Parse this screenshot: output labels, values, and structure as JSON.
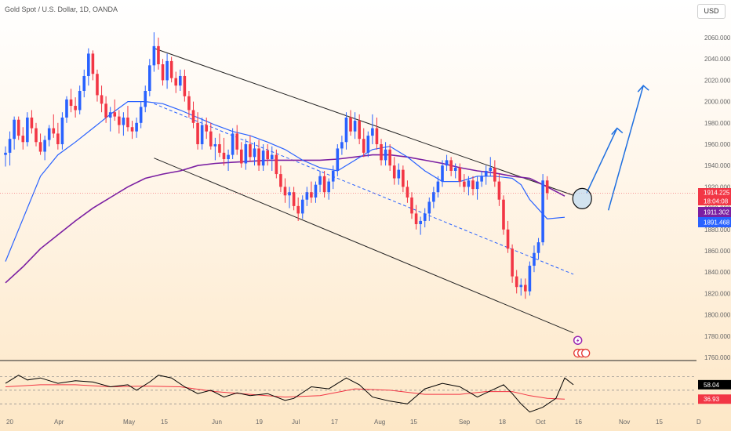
{
  "header": {
    "title": "Gold Spot / U.S. Dollar, 1D, OANDA",
    "currency": "USD"
  },
  "price_axis": {
    "ticks": [
      "2060.000",
      "2040.000",
      "2020.000",
      "2000.000",
      "1980.000",
      "1960.000",
      "1940.000",
      "1920.000",
      "1900.000",
      "1880.000",
      "1860.000",
      "1840.000",
      "1820.000",
      "1800.000",
      "1780.000",
      "1760.000"
    ]
  },
  "price_labels": {
    "last": "1914.225",
    "countdown": "18:04:08",
    "ma_long": "1911.302",
    "ma_short": "1891.468"
  },
  "time_axis": {
    "ticks": [
      "20",
      "Apr",
      "May",
      "15",
      "Jun",
      "19",
      "Jul",
      "17",
      "Aug",
      "15",
      "Sep",
      "18",
      "Oct",
      "16",
      "Nov",
      "15",
      "D"
    ]
  },
  "rsi": {
    "value": "58.04",
    "signal": "36.93"
  },
  "colors": {
    "up": "#2962ff",
    "down": "#f23645",
    "ma_short": "#2962ff",
    "ma_long": "#7b1fa2",
    "rsi": "#000000",
    "rsi_signal": "#f23645",
    "arrow": "#1e6fe0"
  },
  "chart_data": {
    "type": "candlestick",
    "title": "Gold Spot / U.S. Dollar, 1D, OANDA",
    "ylim": [
      1760,
      2060
    ],
    "last_price": 1914.225,
    "ma_values": [
      1911.302,
      1891.468
    ],
    "candles": [
      [
        1950,
        1958,
        1939,
        1952
      ],
      [
        1952,
        1972,
        1940,
        1965
      ],
      [
        1965,
        1986,
        1955,
        1983
      ],
      [
        1983,
        1986,
        1964,
        1968
      ],
      [
        1968,
        1976,
        1955,
        1962
      ],
      [
        1962,
        1990,
        1958,
        1985
      ],
      [
        1985,
        1992,
        1970,
        1975
      ],
      [
        1975,
        1980,
        1958,
        1962
      ],
      [
        1962,
        1970,
        1950,
        1953
      ],
      [
        1953,
        1968,
        1945,
        1964
      ],
      [
        1964,
        1978,
        1958,
        1975
      ],
      [
        1975,
        1988,
        1966,
        1970
      ],
      [
        1970,
        1980,
        1955,
        1960
      ],
      [
        1960,
        1990,
        1955,
        1985
      ],
      [
        1985,
        2005,
        1980,
        2002
      ],
      [
        2002,
        2012,
        1990,
        1996
      ],
      [
        1996,
        2004,
        1985,
        1992
      ],
      [
        1992,
        2015,
        1988,
        2010
      ],
      [
        2010,
        2030,
        2004,
        2024
      ],
      [
        2024,
        2050,
        2015,
        2045
      ],
      [
        2045,
        2048,
        2020,
        2026
      ],
      [
        2026,
        2030,
        2000,
        2006
      ],
      [
        2006,
        2015,
        1990,
        1998
      ],
      [
        1998,
        2005,
        1980,
        1985
      ],
      [
        1985,
        1995,
        1972,
        1990
      ],
      [
        1990,
        2002,
        1982,
        1986
      ],
      [
        1986,
        1992,
        1970,
        1978
      ],
      [
        1978,
        1990,
        1968,
        1985
      ],
      [
        1985,
        1996,
        1972,
        1976
      ],
      [
        1976,
        1982,
        1965,
        1972
      ],
      [
        1972,
        1985,
        1966,
        1980
      ],
      [
        1980,
        2000,
        1975,
        1995
      ],
      [
        1995,
        2015,
        1990,
        2010
      ],
      [
        2010,
        2040,
        2005,
        2034
      ],
      [
        2034,
        2065,
        2028,
        2052
      ],
      [
        2052,
        2060,
        2030,
        2035
      ],
      [
        2035,
        2040,
        2015,
        2020
      ],
      [
        2020,
        2045,
        2012,
        2038
      ],
      [
        2038,
        2042,
        2018,
        2022
      ],
      [
        2022,
        2028,
        2008,
        2015
      ],
      [
        2015,
        2030,
        2010,
        2024
      ],
      [
        2024,
        2030,
        2000,
        2005
      ],
      [
        2005,
        2010,
        1985,
        1992
      ],
      [
        1992,
        2000,
        1975,
        1980
      ],
      [
        1980,
        1990,
        1955,
        1960
      ],
      [
        1960,
        1985,
        1955,
        1978
      ],
      [
        1978,
        1985,
        1965,
        1972
      ],
      [
        1972,
        1980,
        1955,
        1958
      ],
      [
        1958,
        1966,
        1945,
        1960
      ],
      [
        1960,
        1970,
        1948,
        1952
      ],
      [
        1952,
        1966,
        1940,
        1946
      ],
      [
        1946,
        1955,
        1935,
        1950
      ],
      [
        1950,
        1975,
        1946,
        1970
      ],
      [
        1970,
        1978,
        1950,
        1955
      ],
      [
        1955,
        1962,
        1938,
        1942
      ],
      [
        1942,
        1965,
        1936,
        1960
      ],
      [
        1960,
        1968,
        1944,
        1948
      ],
      [
        1948,
        1962,
        1940,
        1956
      ],
      [
        1956,
        1964,
        1935,
        1940
      ],
      [
        1940,
        1960,
        1935,
        1954
      ],
      [
        1954,
        1960,
        1940,
        1946
      ],
      [
        1946,
        1958,
        1935,
        1950
      ],
      [
        1950,
        1955,
        1928,
        1932
      ],
      [
        1932,
        1940,
        1915,
        1920
      ],
      [
        1920,
        1928,
        1905,
        1912
      ],
      [
        1912,
        1920,
        1900,
        1915
      ],
      [
        1915,
        1920,
        1898,
        1902
      ],
      [
        1902,
        1910,
        1888,
        1895
      ],
      [
        1895,
        1912,
        1890,
        1908
      ],
      [
        1908,
        1920,
        1902,
        1915
      ],
      [
        1915,
        1925,
        1905,
        1910
      ],
      [
        1910,
        1925,
        1905,
        1922
      ],
      [
        1922,
        1935,
        1915,
        1930
      ],
      [
        1930,
        1935,
        1910,
        1915
      ],
      [
        1915,
        1928,
        1908,
        1925
      ],
      [
        1925,
        1940,
        1918,
        1935
      ],
      [
        1935,
        1960,
        1930,
        1956
      ],
      [
        1956,
        1968,
        1950,
        1962
      ],
      [
        1962,
        1990,
        1955,
        1985
      ],
      [
        1985,
        1992,
        1968,
        1972
      ],
      [
        1972,
        1990,
        1965,
        1982
      ],
      [
        1982,
        1988,
        1960,
        1965
      ],
      [
        1965,
        1975,
        1948,
        1952
      ],
      [
        1952,
        1972,
        1948,
        1968
      ],
      [
        1968,
        1988,
        1960,
        1975
      ],
      [
        1975,
        1985,
        1955,
        1960
      ],
      [
        1960,
        1965,
        1940,
        1945
      ],
      [
        1945,
        1962,
        1940,
        1955
      ],
      [
        1955,
        1960,
        1935,
        1940
      ],
      [
        1940,
        1948,
        1922,
        1928
      ],
      [
        1928,
        1942,
        1922,
        1936
      ],
      [
        1936,
        1940,
        1915,
        1920
      ],
      [
        1920,
        1926,
        1905,
        1910
      ],
      [
        1910,
        1915,
        1890,
        1895
      ],
      [
        1895,
        1903,
        1880,
        1885
      ],
      [
        1885,
        1892,
        1875,
        1888
      ],
      [
        1888,
        1900,
        1882,
        1895
      ],
      [
        1895,
        1910,
        1888,
        1906
      ],
      [
        1906,
        1920,
        1900,
        1915
      ],
      [
        1915,
        1930,
        1910,
        1925
      ],
      [
        1925,
        1945,
        1920,
        1940
      ],
      [
        1940,
        1950,
        1935,
        1945
      ],
      [
        1945,
        1948,
        1930,
        1935
      ],
      [
        1935,
        1942,
        1928,
        1938
      ],
      [
        1938,
        1942,
        1920,
        1925
      ],
      [
        1925,
        1932,
        1915,
        1920
      ],
      [
        1920,
        1930,
        1912,
        1926
      ],
      [
        1926,
        1930,
        1912,
        1918
      ],
      [
        1918,
        1930,
        1908,
        1925
      ],
      [
        1925,
        1935,
        1920,
        1930
      ],
      [
        1930,
        1940,
        1922,
        1935
      ],
      [
        1935,
        1948,
        1930,
        1938
      ],
      [
        1938,
        1945,
        1920,
        1925
      ],
      [
        1925,
        1932,
        1902,
        1908
      ],
      [
        1908,
        1912,
        1875,
        1880
      ],
      [
        1880,
        1888,
        1858,
        1862
      ],
      [
        1862,
        1866,
        1830,
        1836
      ],
      [
        1836,
        1842,
        1820,
        1826
      ],
      [
        1826,
        1834,
        1818,
        1828
      ],
      [
        1828,
        1834,
        1815,
        1822
      ],
      [
        1822,
        1850,
        1818,
        1846
      ],
      [
        1846,
        1865,
        1840,
        1858
      ],
      [
        1858,
        1872,
        1852,
        1868
      ],
      [
        1868,
        1932,
        1865,
        1926
      ],
      [
        1926,
        1930,
        1908,
        1914.225
      ]
    ],
    "channel_upper": [
      [
        34,
        2050
      ],
      [
        130,
        1912
      ]
    ],
    "channel_lower": [
      [
        34,
        1947
      ],
      [
        130,
        1783
      ]
    ],
    "channel_mid": [
      [
        34,
        1998
      ],
      [
        130,
        1838
      ]
    ],
    "ma_short": [
      [
        0,
        1850
      ],
      [
        4,
        1890
      ],
      [
        8,
        1930
      ],
      [
        12,
        1950
      ],
      [
        16,
        1962
      ],
      [
        20,
        1975
      ],
      [
        24,
        1988
      ],
      [
        28,
        2000
      ],
      [
        32,
        2000
      ],
      [
        36,
        1998
      ],
      [
        40,
        1992
      ],
      [
        44,
        1985
      ],
      [
        48,
        1978
      ],
      [
        52,
        1972
      ],
      [
        56,
        1968
      ],
      [
        60,
        1962
      ],
      [
        64,
        1955
      ],
      [
        68,
        1945
      ],
      [
        72,
        1938
      ],
      [
        76,
        1935
      ],
      [
        80,
        1945
      ],
      [
        84,
        1955
      ],
      [
        88,
        1958
      ],
      [
        92,
        1948
      ],
      [
        96,
        1935
      ],
      [
        100,
        1925
      ],
      [
        104,
        1925
      ],
      [
        108,
        1930
      ],
      [
        112,
        1930
      ],
      [
        116,
        1928
      ],
      [
        118,
        1922
      ],
      [
        120,
        1908
      ],
      [
        124,
        1890
      ],
      [
        128,
        1891.468
      ]
    ],
    "ma_long": [
      [
        0,
        1830
      ],
      [
        4,
        1845
      ],
      [
        8,
        1862
      ],
      [
        12,
        1875
      ],
      [
        16,
        1888
      ],
      [
        20,
        1900
      ],
      [
        24,
        1910
      ],
      [
        28,
        1920
      ],
      [
        32,
        1928
      ],
      [
        36,
        1932
      ],
      [
        40,
        1935
      ],
      [
        44,
        1940
      ],
      [
        48,
        1942
      ],
      [
        52,
        1943
      ],
      [
        56,
        1944
      ],
      [
        60,
        1945
      ],
      [
        64,
        1945
      ],
      [
        68,
        1945
      ],
      [
        72,
        1945
      ],
      [
        76,
        1946
      ],
      [
        80,
        1948
      ],
      [
        84,
        1950
      ],
      [
        88,
        1950
      ],
      [
        92,
        1948
      ],
      [
        96,
        1945
      ],
      [
        100,
        1942
      ],
      [
        104,
        1938
      ],
      [
        108,
        1935
      ],
      [
        112,
        1933
      ],
      [
        116,
        1930
      ],
      [
        120,
        1928
      ],
      [
        124,
        1920
      ],
      [
        128,
        1911.302
      ]
    ],
    "projection": [
      [
        [
          133,
          1914
        ],
        [
          140,
          1975
        ]
      ],
      [
        [
          138,
          1898
        ],
        [
          146,
          2015
        ]
      ]
    ],
    "rsi": {
      "ylim": [
        20,
        90
      ],
      "levels": [
        70,
        50,
        30
      ],
      "rsi": [
        [
          0,
          60
        ],
        [
          3,
          72
        ],
        [
          5,
          65
        ],
        [
          8,
          68
        ],
        [
          12,
          60
        ],
        [
          16,
          64
        ],
        [
          20,
          62
        ],
        [
          24,
          55
        ],
        [
          28,
          58
        ],
        [
          30,
          50
        ],
        [
          33,
          62
        ],
        [
          35,
          72
        ],
        [
          38,
          68
        ],
        [
          41,
          55
        ],
        [
          44,
          45
        ],
        [
          47,
          50
        ],
        [
          50,
          40
        ],
        [
          53,
          46
        ],
        [
          56,
          42
        ],
        [
          60,
          45
        ],
        [
          64,
          35
        ],
        [
          66,
          38
        ],
        [
          70,
          55
        ],
        [
          74,
          52
        ],
        [
          78,
          68
        ],
        [
          81,
          58
        ],
        [
          84,
          40
        ],
        [
          88,
          34
        ],
        [
          92,
          30
        ],
        [
          96,
          52
        ],
        [
          100,
          60
        ],
        [
          104,
          55
        ],
        [
          108,
          40
        ],
        [
          112,
          52
        ],
        [
          114,
          58
        ],
        [
          116,
          45
        ],
        [
          118,
          30
        ],
        [
          120,
          18
        ],
        [
          123,
          25
        ],
        [
          126,
          38
        ],
        [
          128,
          68
        ],
        [
          130,
          58.04
        ]
      ],
      "signal": [
        [
          0,
          55
        ],
        [
          8,
          58
        ],
        [
          16,
          58
        ],
        [
          24,
          55
        ],
        [
          32,
          56
        ],
        [
          40,
          55
        ],
        [
          48,
          48
        ],
        [
          56,
          44
        ],
        [
          64,
          40
        ],
        [
          72,
          42
        ],
        [
          80,
          52
        ],
        [
          88,
          50
        ],
        [
          96,
          44
        ],
        [
          104,
          44
        ],
        [
          110,
          48
        ],
        [
          116,
          48
        ],
        [
          120,
          42
        ],
        [
          124,
          38
        ],
        [
          128,
          36.93
        ]
      ]
    }
  }
}
